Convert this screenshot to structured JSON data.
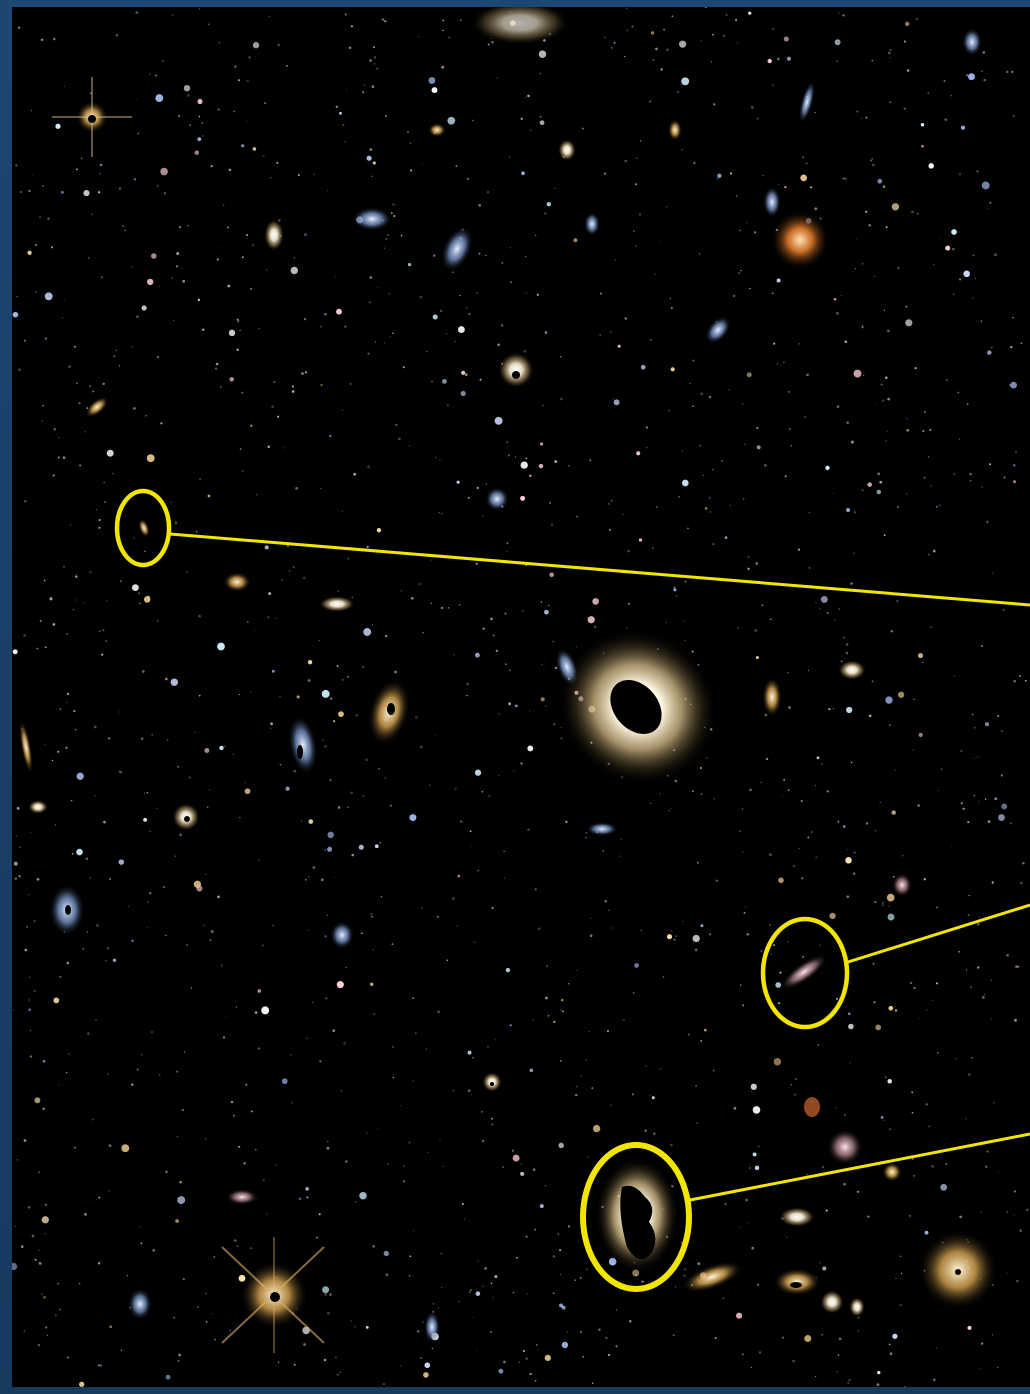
{
  "scene": {
    "description_free": true,
    "background_color": "#000000",
    "frame_color": "#1a3f66",
    "annotation_color": "#f2e600",
    "callouts": [
      {
        "name": "callout-small-galaxy-left"
      },
      {
        "name": "callout-galaxy-middle-right"
      },
      {
        "name": "callout-galaxy-bottom"
      }
    ]
  }
}
